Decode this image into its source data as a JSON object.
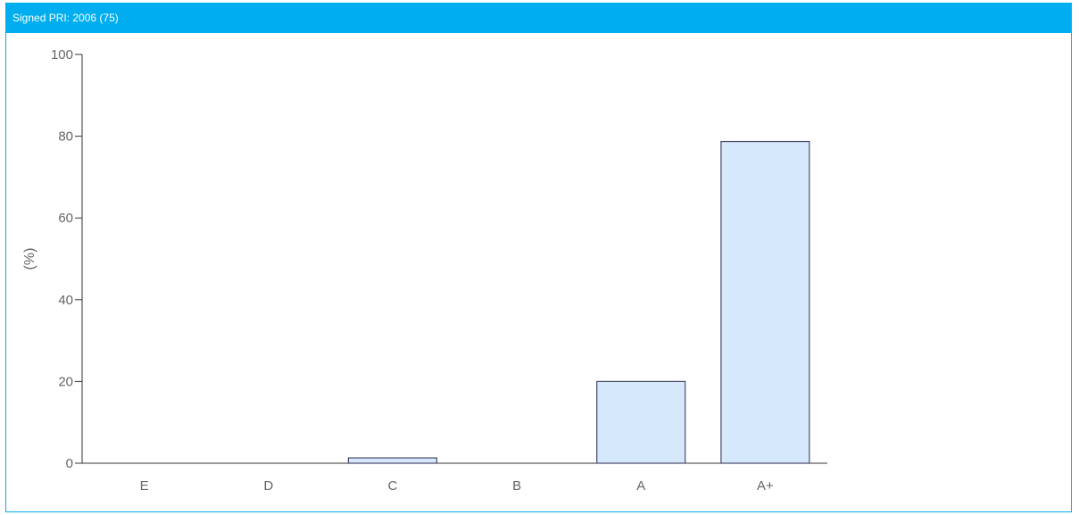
{
  "panel": {
    "title": "Signed PRI: 2006 (75)"
  },
  "colors": {
    "header": "#00aeef",
    "bar_fill": "#d6e8fc",
    "bar_stroke": "#4a4a6a",
    "axis": "#333333",
    "text": "#666666"
  },
  "chart_data": {
    "type": "bar",
    "categories": [
      "E",
      "D",
      "C",
      "B",
      "A",
      "A+"
    ],
    "values": [
      0,
      0,
      1.3,
      0,
      20,
      78.7
    ],
    "title": "",
    "xlabel": "",
    "ylabel": "(%)",
    "ylim": [
      0,
      100
    ],
    "yticks": [
      0,
      20,
      40,
      60,
      80,
      100
    ],
    "grid": false
  }
}
